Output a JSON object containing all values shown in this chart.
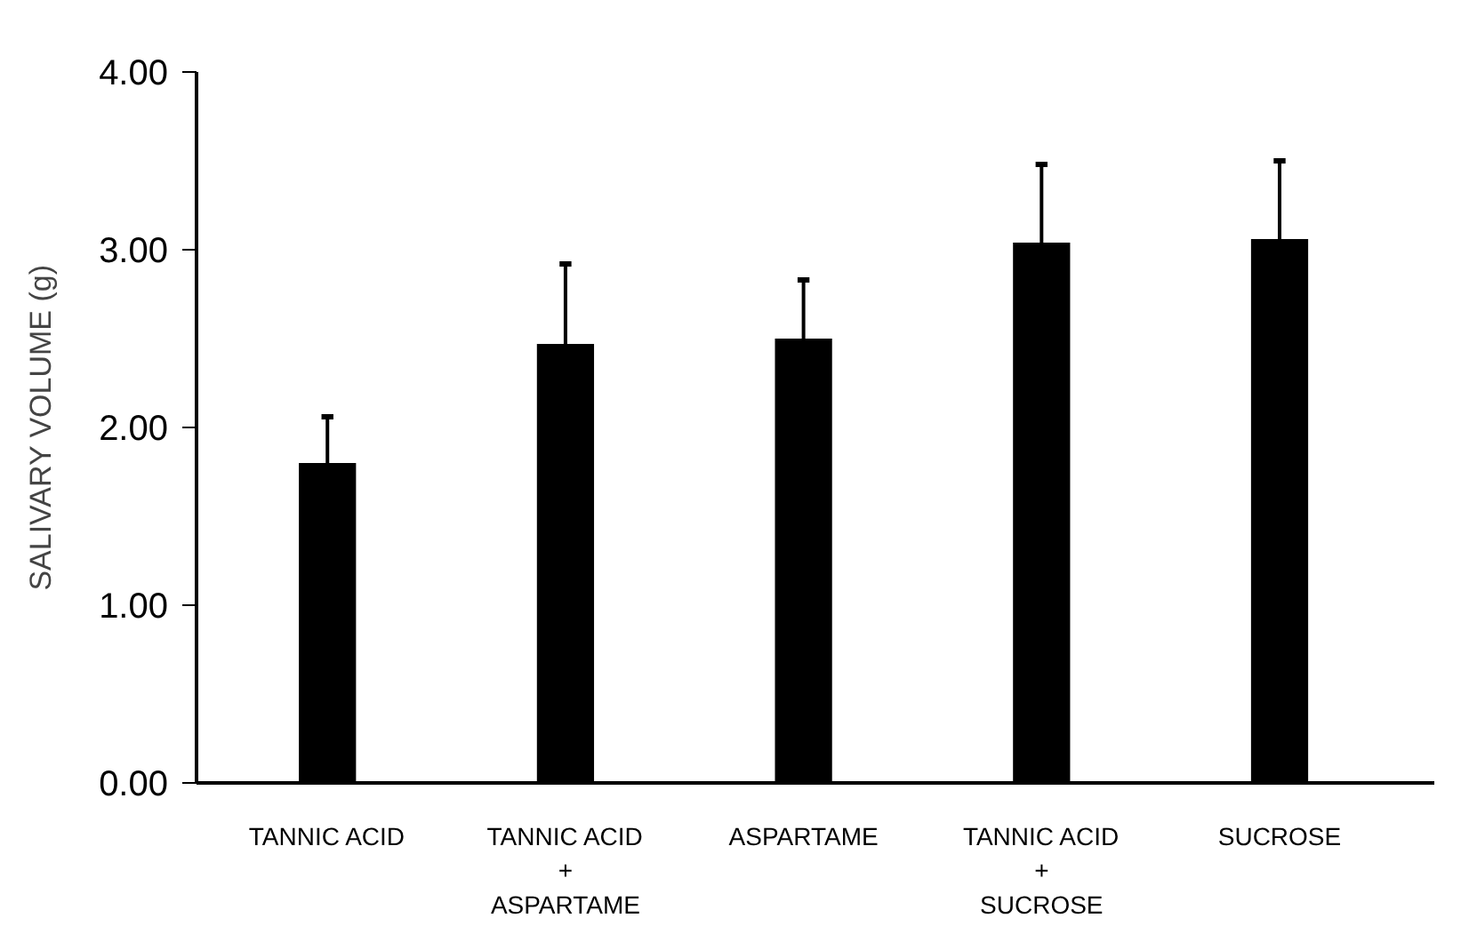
{
  "chart_data": {
    "type": "bar",
    "ylabel": "SALIVARY VOLUME (g)",
    "categories": [
      "TANNIC ACID",
      "TANNIC ACID\n+\nASPARTAME",
      "ASPARTAME",
      "TANNIC ACID\n+\nSUCROSE",
      "SUCROSE"
    ],
    "values": [
      1.8,
      2.47,
      2.5,
      3.04,
      3.06
    ],
    "errors": [
      [
        1.8,
        2.06
      ],
      [
        2.47,
        2.92
      ],
      [
        2.5,
        2.83
      ],
      [
        3.04,
        3.48
      ],
      [
        3.06,
        3.5
      ]
    ],
    "color": "#000000",
    "ylim": [
      0,
      4
    ],
    "yticks": [
      {
        "value": 0,
        "label": "0.00"
      },
      {
        "value": 1,
        "label": "1.00"
      },
      {
        "value": 2,
        "label": "2.00"
      },
      {
        "value": 3,
        "label": "3.00"
      },
      {
        "value": 4,
        "label": "4.00"
      }
    ],
    "grid": false
  }
}
